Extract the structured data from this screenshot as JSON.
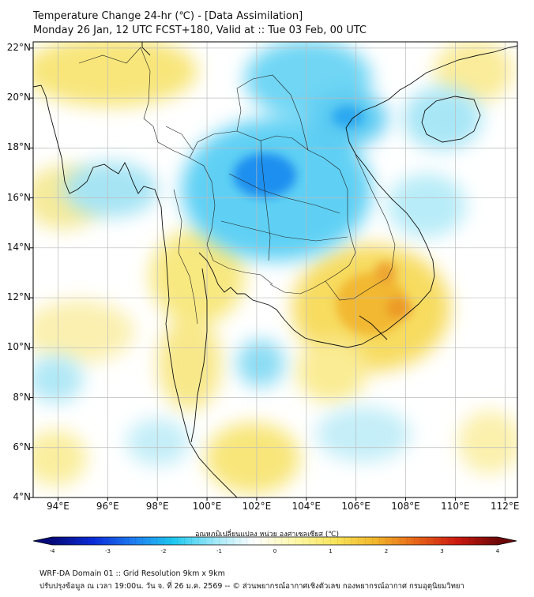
{
  "title": {
    "line1": "Temperature Change 24-hr (℃) - [Data Assimilation]",
    "line2": "Monday 26 Jan, 12 UTC FCST+180, Valid at :: Tue 03 Feb, 00 UTC"
  },
  "map": {
    "lat_labels": [
      "22°N",
      "20°N",
      "18°N",
      "16°N",
      "14°N",
      "12°N",
      "10°N",
      "8°N",
      "6°N",
      "4°N"
    ],
    "lon_labels": [
      "94°E",
      "96°E",
      "98°E",
      "100°E",
      "102°E",
      "104°E",
      "106°E",
      "108°E",
      "110°E",
      "112°E"
    ],
    "lat_range": [
      4,
      22.25
    ],
    "lon_range": [
      93,
      112.5
    ],
    "features": [
      {
        "name": "cold-core",
        "lat": 16.8,
        "lon": 102.2,
        "value": -2.6
      },
      {
        "name": "cold-laos-north",
        "lat": 19.2,
        "lon": 104.5,
        "value": -1.8
      },
      {
        "name": "cold-south-china",
        "lat": 20.8,
        "lon": 103.0,
        "value": -1.3
      },
      {
        "name": "warm-cambodia",
        "lat": 11.8,
        "lon": 107.5,
        "value": 2.0
      },
      {
        "name": "warm-vietnam-central",
        "lat": 13.0,
        "lon": 107.2,
        "value": 1.8
      },
      {
        "name": "warm-myanmar-north",
        "lat": 21.0,
        "lon": 96.5,
        "value": 0.9
      }
    ]
  },
  "colorbar": {
    "label": "อุณหภูมิเปลี่ยนแปลง หน่วย องศาเซลเซียส (℃)",
    "ticks": [
      "-4",
      "-3",
      "-2",
      "-1",
      "0",
      "1",
      "2",
      "3",
      "4"
    ],
    "min": -4,
    "max": 4,
    "colors": [
      "#050a7a",
      "#0a2bd8",
      "#1e7cf0",
      "#1ec8f0",
      "#9ee8f8",
      "#ffffff",
      "#fff8a8",
      "#f8e45a",
      "#f2b52a",
      "#e86418",
      "#cc1a10",
      "#6e0808"
    ]
  },
  "footer": {
    "line1": "WRF-DA Domain 01 :: Grid Resolution 9km x 9km",
    "line2": "ปรับปรุงข้อมูล ณ เวลา 19:00น. วัน จ. ที่ 26 ม.ค. 2569 -- © ส่วนพยากรณ์อากาศเชิงตัวเลข กองพยากรณ์อากาศ กรมอุตุนิยมวิทยา"
  }
}
